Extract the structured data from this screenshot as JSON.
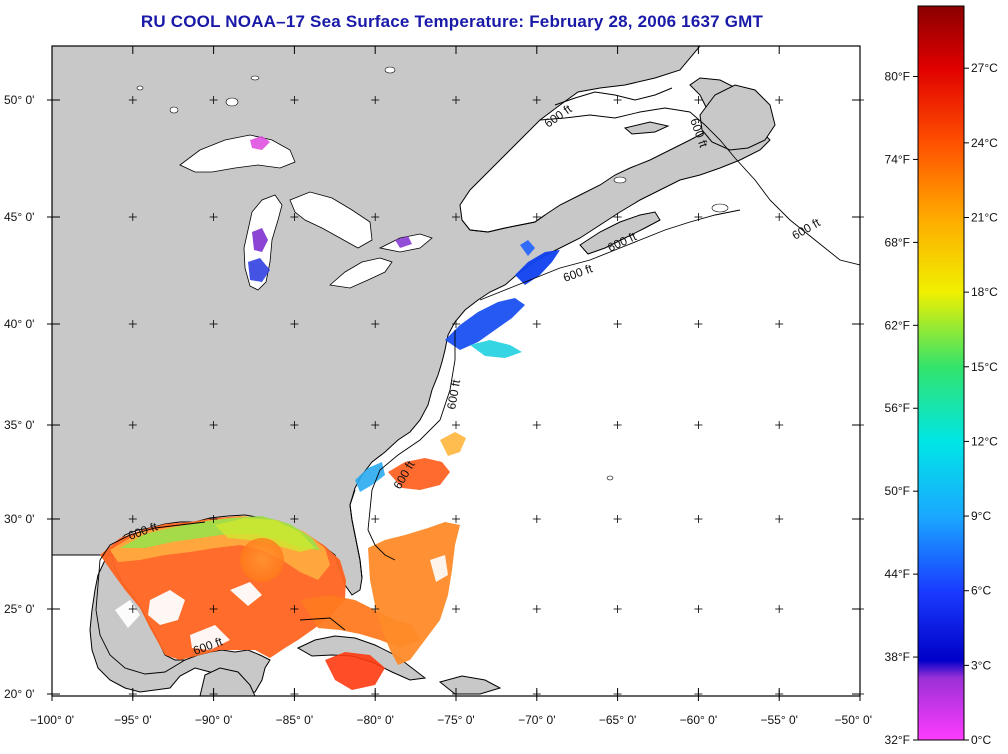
{
  "title": "RU COOL  NOAA–17  Sea Surface Temperature:  February 28, 2006 1637 GMT",
  "map": {
    "lon_range": [
      -100,
      -50
    ],
    "lat_range": [
      20,
      53
    ],
    "lon_ticks": [
      {
        "value": -100,
        "label": "−100° 0'"
      },
      {
        "value": -95,
        "label": "−95° 0'"
      },
      {
        "value": -90,
        "label": "−90° 0'"
      },
      {
        "value": -85,
        "label": "−85° 0'"
      },
      {
        "value": -80,
        "label": "−80° 0'"
      },
      {
        "value": -75,
        "label": "−75° 0'"
      },
      {
        "value": -70,
        "label": "−70° 0'"
      },
      {
        "value": -65,
        "label": "−65° 0'"
      },
      {
        "value": -60,
        "label": "−60° 0'"
      },
      {
        "value": -55,
        "label": "−55° 0'"
      },
      {
        "value": -50,
        "label": "−50° 0'"
      }
    ],
    "lat_ticks": [
      {
        "value": 20,
        "label": "20° 0'"
      },
      {
        "value": 25,
        "label": "25° 0'"
      },
      {
        "value": 30,
        "label": "30° 0'"
      },
      {
        "value": 35,
        "label": "35° 0'"
      },
      {
        "value": 40,
        "label": "40° 0'"
      },
      {
        "value": 45,
        "label": "45° 0'"
      },
      {
        "value": 50,
        "label": "50° 0'"
      }
    ],
    "contour_label": "600 ft",
    "colors": {
      "land": "#c8c8c8",
      "ocean_nodata": "#ffffff",
      "coast": "#000000"
    }
  },
  "colorbar": {
    "stops": [
      {
        "c": 0,
        "color": "#ff3cff"
      },
      {
        "c": 2.5,
        "color": "#9a30d6"
      },
      {
        "c": 3.2,
        "color": "#0000c8"
      },
      {
        "c": 6,
        "color": "#1a3cff"
      },
      {
        "c": 9,
        "color": "#1aa8ff"
      },
      {
        "c": 12,
        "color": "#00e6e6"
      },
      {
        "c": 15,
        "color": "#33e36b"
      },
      {
        "c": 18,
        "color": "#f0f000"
      },
      {
        "c": 21,
        "color": "#ffaa00"
      },
      {
        "c": 24,
        "color": "#ff5000"
      },
      {
        "c": 27,
        "color": "#e00000"
      },
      {
        "c": 29.5,
        "color": "#8b0000"
      }
    ],
    "celsius_labels": [
      {
        "value": 0,
        "label": "0°C"
      },
      {
        "value": 3,
        "label": "3°C"
      },
      {
        "value": 6,
        "label": "6°C"
      },
      {
        "value": 9,
        "label": "9°C"
      },
      {
        "value": 12,
        "label": "12°C"
      },
      {
        "value": 15,
        "label": "15°C"
      },
      {
        "value": 18,
        "label": "18°C"
      },
      {
        "value": 21,
        "label": "21°C"
      },
      {
        "value": 24,
        "label": "24°C"
      },
      {
        "value": 27,
        "label": "27°C"
      }
    ],
    "fahrenheit_labels": [
      {
        "value": 32,
        "label": "32°F"
      },
      {
        "value": 38,
        "label": "38°F"
      },
      {
        "value": 44,
        "label": "44°F"
      },
      {
        "value": 50,
        "label": "50°F"
      },
      {
        "value": 56,
        "label": "56°F"
      },
      {
        "value": 62,
        "label": "62°F"
      },
      {
        "value": 68,
        "label": "68°F"
      },
      {
        "value": 74,
        "label": "74°F"
      },
      {
        "value": 80,
        "label": "80°F"
      }
    ],
    "range_c": [
      0,
      29.5
    ]
  }
}
